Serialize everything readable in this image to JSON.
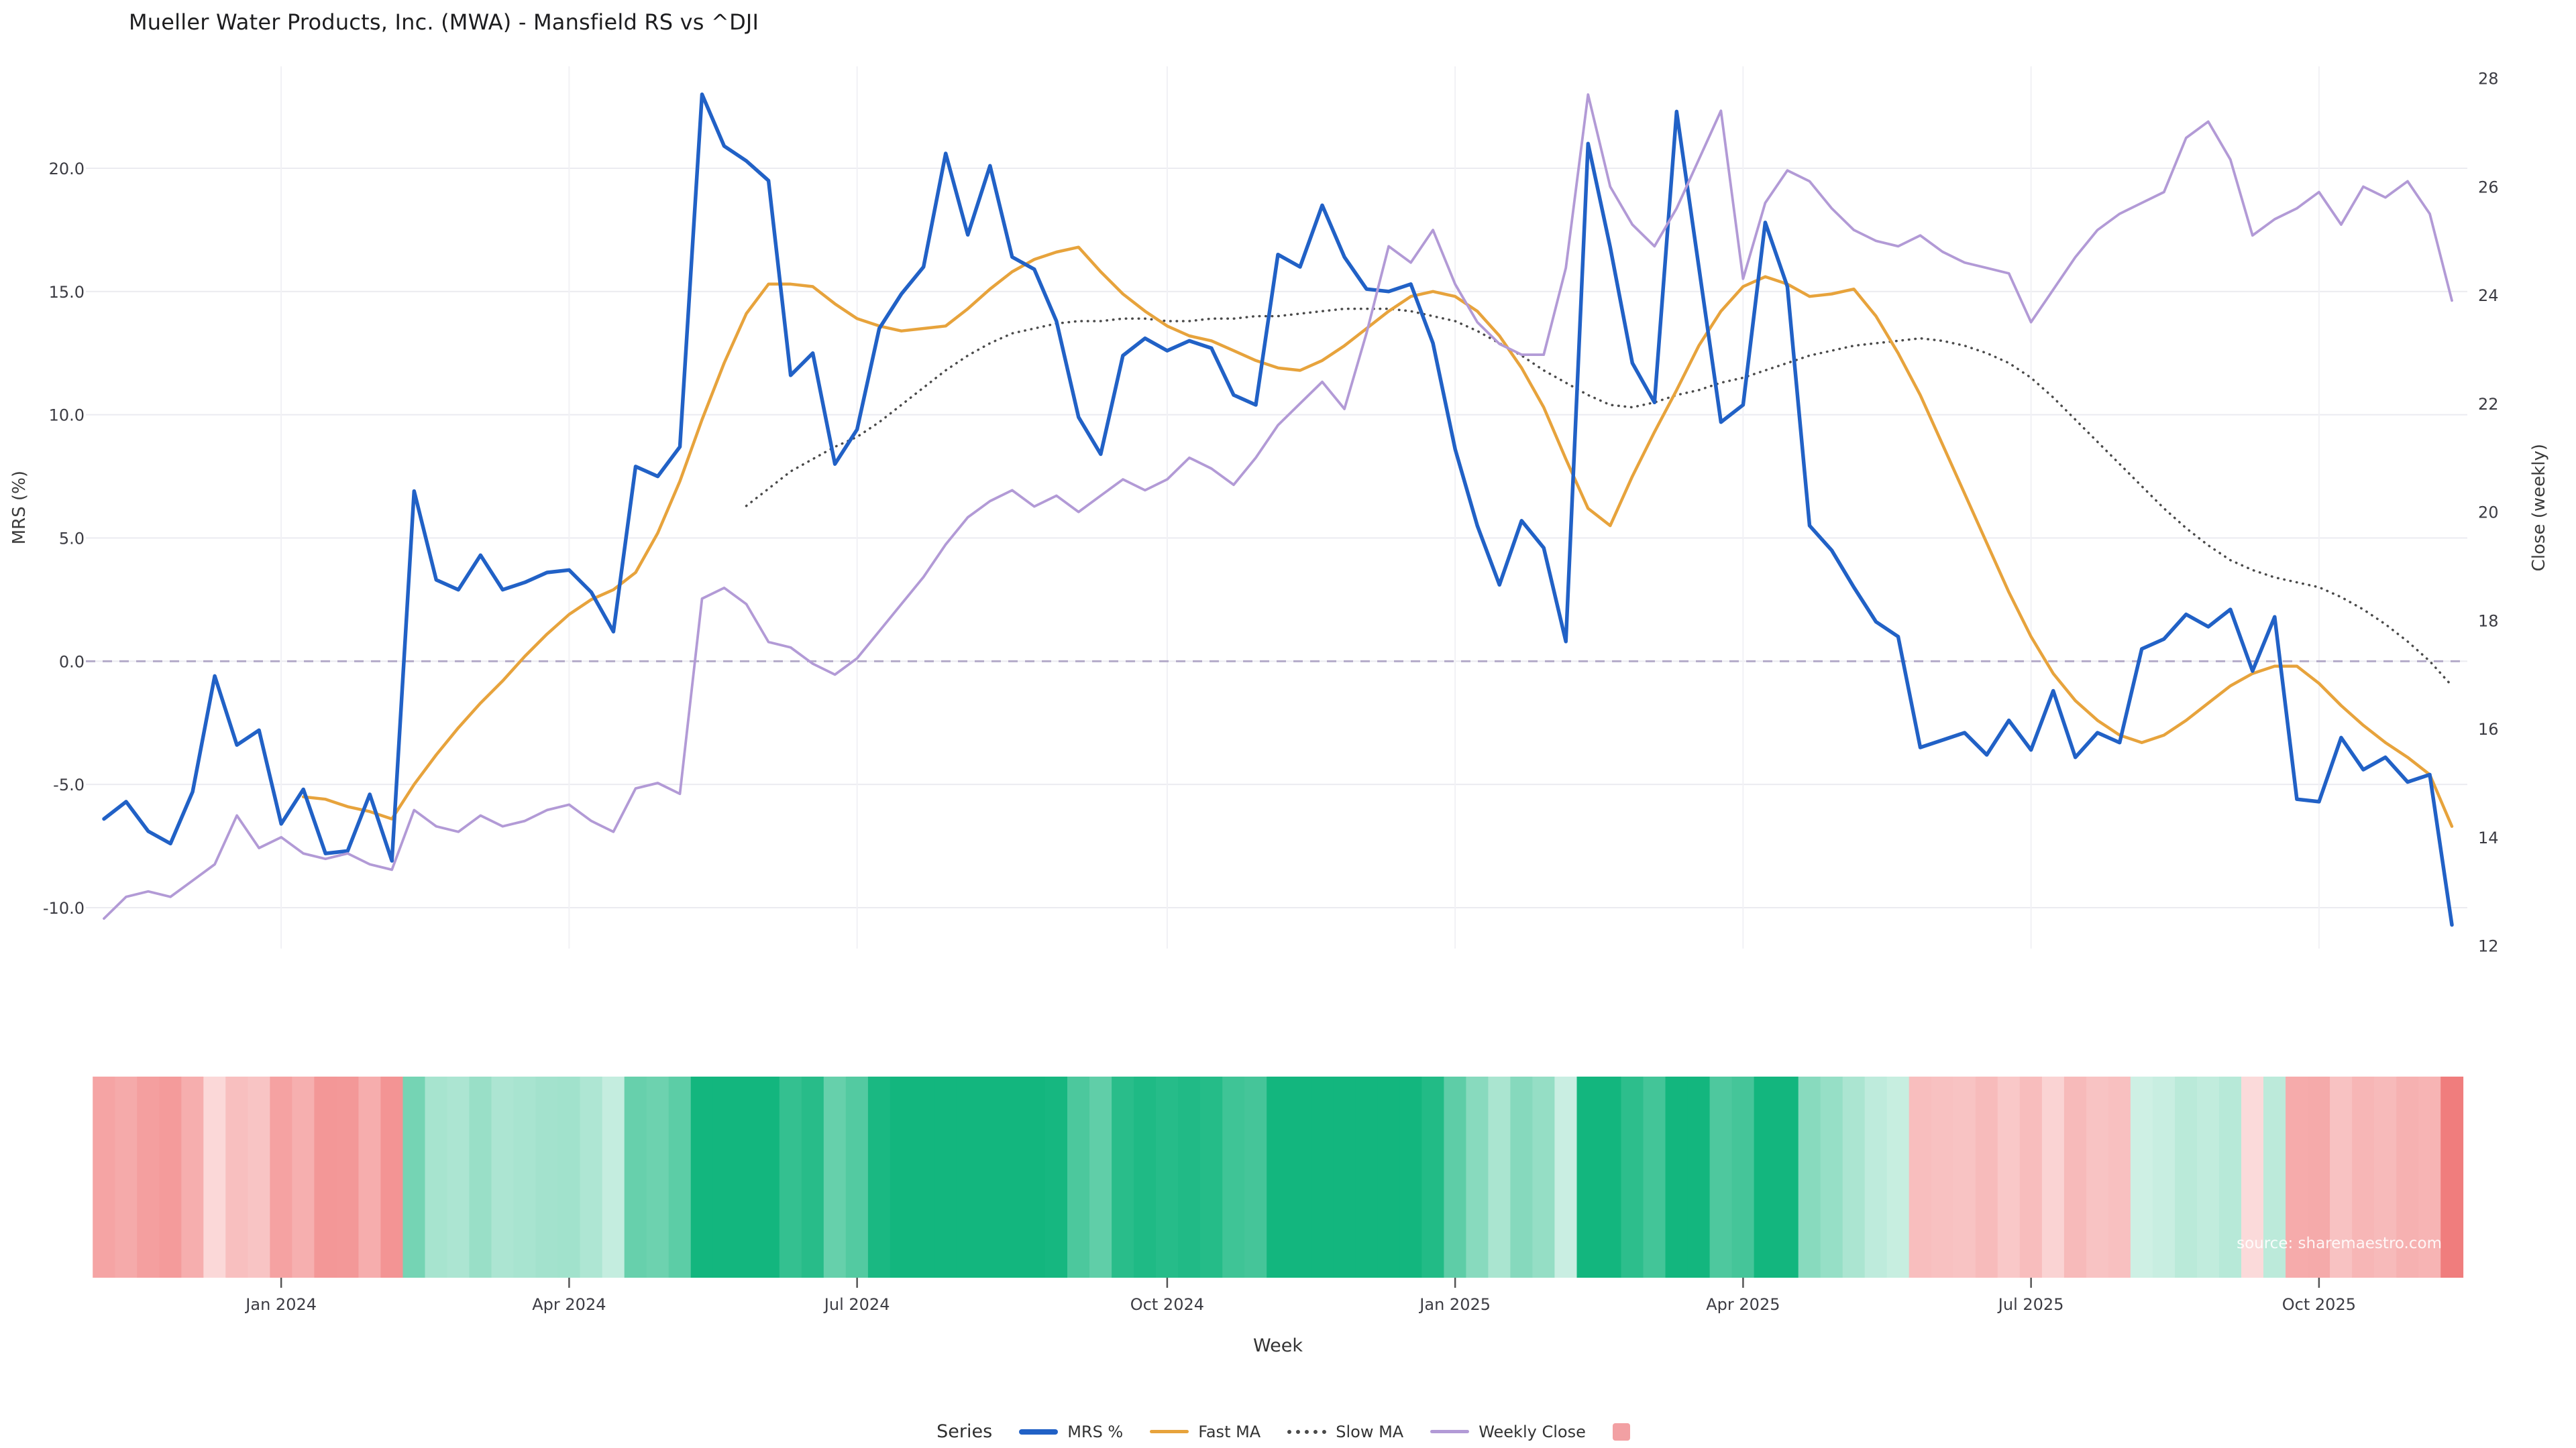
{
  "title": "Mueller Water Products, Inc. (MWA) - Mansfield RS vs ^DJI",
  "source": "source: sharemaestro.com",
  "colors": {
    "mrs": "#2161c6",
    "fast_ma": "#e7a33c",
    "slow_ma": "#4a4a4a",
    "weekly_close": "#b29ad6",
    "gridline": "#ebebf0",
    "gridline_vertical": "#f1f1f5",
    "zero_line": "#b4abc9",
    "heatmap_green": "#13b67e",
    "heatmap_red": "#f07a7a",
    "legend_heatmap_swatch": "#f2a0a3"
  },
  "axes": {
    "y_left": {
      "label": "MRS (%)",
      "ticks": [
        -10,
        -5,
        0,
        5,
        10,
        15,
        20
      ],
      "range": [
        -12.5,
        23.5
      ]
    },
    "y_right": {
      "label": "Close (weekly)",
      "ticks": [
        12,
        14,
        16,
        18,
        20,
        22,
        24,
        26,
        28
      ],
      "range": [
        12,
        28
      ]
    },
    "x": {
      "label": "Week"
    }
  },
  "legend": {
    "title": "Series",
    "items": [
      {
        "label": "MRS %",
        "color": "#2161c6",
        "style": "line-thick"
      },
      {
        "label": "Fast MA",
        "color": "#e7a33c",
        "style": "line"
      },
      {
        "label": "Slow MA",
        "color": "#4a4a4a",
        "style": "dotted"
      },
      {
        "label": "Weekly Close",
        "color": "#b29ad6",
        "style": "line"
      },
      {
        "label": "",
        "color": "#f2a0a3",
        "style": "square"
      }
    ]
  },
  "chart_data": {
    "type": "line",
    "title": "Mueller Water Products, Inc. (MWA) - Mansfield RS vs ^DJI",
    "xlabel": "Week",
    "ylabel_left": "MRS (%)",
    "ylabel_right": "Close (weekly)",
    "ylim_left": [
      -12.5,
      23.5
    ],
    "ylim_right": [
      12,
      28
    ],
    "grid": true,
    "legend_position": "bottom-center",
    "zero_reference_line": 0,
    "n_points": 107,
    "x_tick_labels": [
      "Jan 2024",
      "Apr 2024",
      "Jul 2024",
      "Oct 2024",
      "Jan 2025",
      "Apr 2025",
      "Jul 2025",
      "Oct 2025"
    ],
    "x_tick_indices": [
      8,
      21,
      34,
      48,
      61,
      74,
      87,
      100
    ],
    "heatmap": {
      "based_on": "MRS %",
      "positive_color": "#13b67e",
      "negative_color": "#f07a7a",
      "description": "weekly strip below chart, green for positive MRS, red for negative MRS"
    },
    "series": [
      {
        "name": "MRS %",
        "axis": "left",
        "color": "#2161c6",
        "width": 5.5,
        "dash": null,
        "values": [
          -6.4,
          -5.7,
          -6.9,
          -7.4,
          -5.3,
          -0.6,
          -3.4,
          -2.8,
          -6.6,
          -5.2,
          -7.8,
          -7.7,
          -5.4,
          -8.1,
          6.9,
          3.3,
          2.9,
          4.3,
          2.9,
          3.2,
          3.6,
          3.7,
          2.8,
          1.2,
          7.9,
          7.5,
          8.7,
          23.0,
          20.9,
          20.3,
          19.5,
          11.6,
          12.5,
          8.0,
          9.4,
          13.5,
          14.9,
          16.0,
          20.6,
          17.3,
          20.1,
          16.4,
          15.9,
          13.8,
          9.9,
          8.4,
          12.4,
          13.1,
          12.6,
          13.0,
          12.7,
          10.8,
          10.4,
          16.5,
          16.0,
          18.5,
          16.4,
          15.1,
          15.0,
          15.3,
          12.9,
          8.6,
          5.5,
          3.1,
          5.7,
          4.6,
          0.8,
          21.0,
          16.8,
          12.1,
          10.5,
          22.3,
          16.0,
          9.7,
          10.4,
          17.8,
          15.2,
          5.5,
          4.5,
          3.0,
          1.6,
          1.0,
          -3.5,
          -3.2,
          -2.9,
          -3.8,
          -2.4,
          -3.6,
          -1.2,
          -3.9,
          -2.9,
          -3.3,
          0.5,
          0.9,
          1.9,
          1.4,
          2.1,
          -0.4,
          1.8,
          -5.6,
          -5.7,
          -3.1,
          -4.4,
          -3.9,
          -4.9,
          -4.6,
          -10.7
        ]
      },
      {
        "name": "Fast MA",
        "axis": "left",
        "color": "#e7a33c",
        "width": 4.5,
        "dash": null,
        "values": [
          null,
          null,
          null,
          null,
          null,
          null,
          null,
          null,
          null,
          -5.5,
          -5.6,
          -5.9,
          -6.1,
          -6.4,
          -5.0,
          -3.8,
          -2.7,
          -1.7,
          -0.8,
          0.2,
          1.1,
          1.9,
          2.5,
          2.9,
          3.6,
          5.2,
          7.3,
          9.8,
          12.1,
          14.1,
          15.3,
          15.3,
          15.2,
          14.5,
          13.9,
          13.6,
          13.4,
          13.5,
          13.6,
          14.3,
          15.1,
          15.8,
          16.3,
          16.6,
          16.8,
          15.8,
          14.9,
          14.2,
          13.6,
          13.2,
          13.0,
          12.6,
          12.2,
          11.9,
          11.8,
          12.2,
          12.8,
          13.5,
          14.2,
          14.8,
          15.0,
          14.8,
          14.2,
          13.2,
          11.9,
          10.3,
          8.2,
          6.2,
          5.5,
          7.5,
          9.3,
          11.0,
          12.8,
          14.2,
          15.2,
          15.6,
          15.3,
          14.8,
          14.9,
          15.1,
          14.0,
          12.5,
          10.8,
          8.8,
          6.8,
          4.8,
          2.8,
          1.0,
          -0.5,
          -1.6,
          -2.4,
          -3.0,
          -3.3,
          -3.0,
          -2.4,
          -1.7,
          -1.0,
          -0.5,
          -0.2,
          -0.2,
          -0.9,
          -1.8,
          -2.6,
          -3.3,
          -3.9,
          -4.6,
          -6.7
        ]
      },
      {
        "name": "Slow MA",
        "axis": "left",
        "color": "#4a4a4a",
        "width": 3.5,
        "dash": "0.5 9",
        "values": [
          null,
          null,
          null,
          null,
          null,
          null,
          null,
          null,
          null,
          null,
          null,
          null,
          null,
          null,
          null,
          null,
          null,
          null,
          null,
          null,
          null,
          null,
          null,
          null,
          null,
          null,
          null,
          null,
          null,
          6.3,
          7.0,
          7.7,
          8.2,
          8.7,
          9.1,
          9.7,
          10.4,
          11.1,
          11.8,
          12.4,
          12.9,
          13.3,
          13.5,
          13.7,
          13.8,
          13.8,
          13.9,
          13.9,
          13.8,
          13.8,
          13.9,
          13.9,
          14.0,
          14.0,
          14.1,
          14.2,
          14.3,
          14.3,
          14.3,
          14.2,
          14.0,
          13.8,
          13.4,
          12.9,
          12.4,
          11.8,
          11.3,
          10.8,
          10.4,
          10.3,
          10.5,
          10.8,
          11.0,
          11.3,
          11.5,
          11.8,
          12.1,
          12.4,
          12.6,
          12.8,
          12.9,
          13.0,
          13.1,
          13.0,
          12.8,
          12.5,
          12.1,
          11.5,
          10.7,
          9.8,
          8.9,
          8.0,
          7.1,
          6.2,
          5.4,
          4.7,
          4.1,
          3.7,
          3.4,
          3.2,
          3.0,
          2.6,
          2.1,
          1.5,
          0.8,
          0.0,
          -1.0
        ]
      },
      {
        "name": "Weekly Close",
        "axis": "right",
        "color": "#b29ad6",
        "width": 3.8,
        "dash": null,
        "values": [
          12.5,
          12.9,
          13.0,
          12.9,
          13.2,
          13.5,
          14.4,
          13.8,
          14.0,
          13.7,
          13.6,
          13.7,
          13.5,
          13.4,
          14.5,
          14.2,
          14.1,
          14.4,
          14.2,
          14.3,
          14.5,
          14.6,
          14.3,
          14.1,
          14.9,
          15.0,
          14.8,
          18.4,
          18.6,
          18.3,
          17.6,
          17.5,
          17.2,
          17.0,
          17.3,
          17.8,
          18.3,
          18.8,
          19.4,
          19.9,
          20.2,
          20.4,
          20.1,
          20.3,
          20.0,
          20.3,
          20.6,
          20.4,
          20.6,
          21.0,
          20.8,
          20.5,
          21.0,
          21.6,
          22.0,
          22.4,
          21.9,
          23.3,
          24.9,
          24.6,
          25.2,
          24.2,
          23.5,
          23.1,
          22.9,
          22.9,
          24.5,
          27.7,
          26.0,
          25.3,
          24.9,
          25.6,
          26.5,
          27.4,
          24.3,
          25.7,
          26.3,
          26.1,
          25.6,
          25.2,
          25.0,
          24.9,
          25.1,
          24.8,
          24.6,
          24.5,
          24.4,
          23.5,
          24.1,
          24.7,
          25.2,
          25.5,
          25.7,
          25.9,
          26.9,
          27.2,
          26.5,
          25.1,
          25.4,
          25.6,
          25.9,
          25.3,
          26.0,
          25.8,
          26.1,
          25.5,
          23.9
        ]
      }
    ]
  }
}
